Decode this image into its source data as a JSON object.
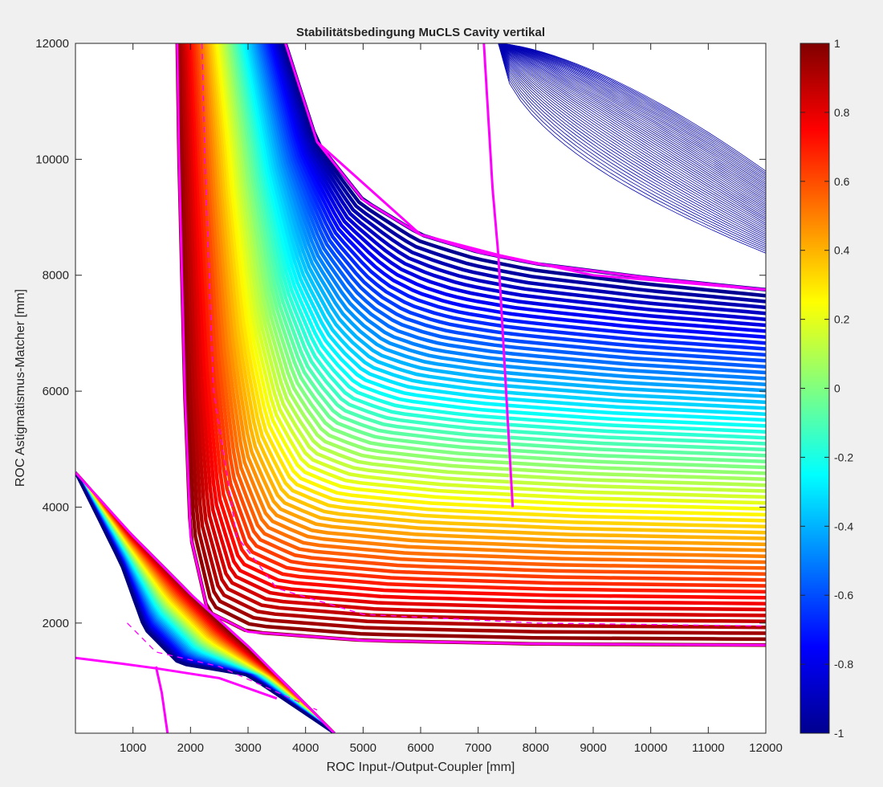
{
  "chart_data": {
    "type": "contour",
    "title": "Stabilitätsbedingung MuCLS Cavity vertikal",
    "xlabel": "ROC Input-/Output-Coupler [mm]",
    "ylabel": "ROC Astigmatismus-Matcher [mm]",
    "xlim": [
      0,
      12000
    ],
    "ylim": [
      100,
      12000
    ],
    "xticks": [
      1000,
      2000,
      3000,
      4000,
      5000,
      6000,
      7000,
      8000,
      9000,
      10000,
      11000,
      12000
    ],
    "xtick_labels": [
      "1000",
      "2000",
      "3000",
      "4000",
      "5000",
      "6000",
      "7000",
      "8000",
      "9000",
      "10000",
      "11000",
      "12000"
    ],
    "yticks": [
      2000,
      4000,
      6000,
      8000,
      10000,
      12000
    ],
    "ytick_labels": [
      "2000",
      "4000",
      "6000",
      "8000",
      "10000",
      "12000"
    ],
    "colorbar": {
      "min": -1,
      "max": 1,
      "colormap": "jet",
      "ticks": [
        -1,
        -0.8,
        -0.6,
        -0.4,
        -0.2,
        0,
        0.2,
        0.4,
        0.6,
        0.8,
        1
      ],
      "tick_labels": [
        "-1",
        "-0.8",
        "-0.6",
        "-0.4",
        "-0.2",
        "0",
        "0.2",
        "0.4",
        "0.6",
        "0.8",
        "1"
      ]
    },
    "boundary_color": "#ff00ff",
    "zero_contour_style": "dashed",
    "regions": [
      {
        "name": "main-region",
        "value_range": [
          -1,
          1
        ],
        "outer_curve": [
          [
            3650,
            12000
          ],
          [
            4200,
            10300
          ],
          [
            5000,
            9300
          ],
          [
            6000,
            8700
          ],
          [
            7000,
            8400
          ],
          [
            8000,
            8200
          ],
          [
            10000,
            7950
          ],
          [
            12000,
            7750
          ]
        ],
        "inner_curve": [
          [
            1770,
            12000
          ],
          [
            1800,
            10000
          ],
          [
            1900,
            6000
          ],
          [
            2000,
            3500
          ],
          [
            2300,
            2200
          ],
          [
            3000,
            1850
          ],
          [
            5000,
            1700
          ],
          [
            8000,
            1640
          ],
          [
            12000,
            1620
          ]
        ],
        "zero_curve": [
          [
            2200,
            12000
          ],
          [
            2250,
            10000
          ],
          [
            2400,
            6000
          ],
          [
            2800,
            3500
          ],
          [
            3500,
            2600
          ],
          [
            5000,
            2150
          ],
          [
            8000,
            2000
          ],
          [
            12000,
            1950
          ]
        ]
      },
      {
        "name": "upper-right-region",
        "value_range": [
          -1,
          -0.9
        ],
        "corner": [
          7350,
          8350
        ]
      },
      {
        "name": "lower-left-region",
        "value_range": [
          -1,
          1
        ],
        "corner": [
          1400,
          1300
        ]
      }
    ]
  }
}
